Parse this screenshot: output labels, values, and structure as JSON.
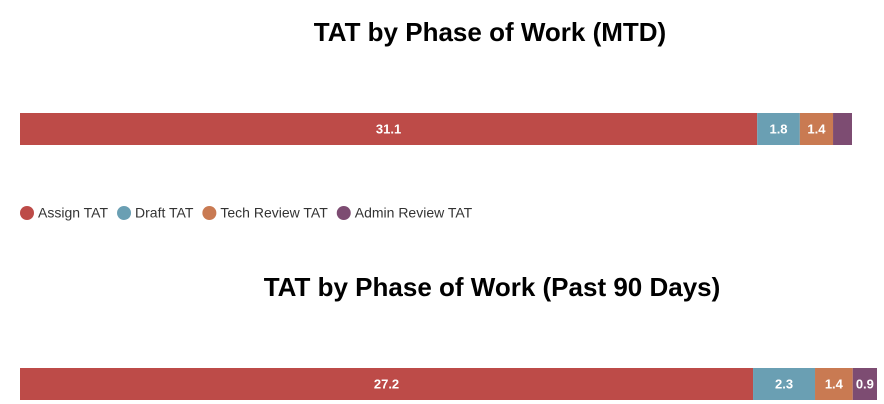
{
  "chart_data": [
    {
      "type": "stacked-bar",
      "title": "TAT by Phase of Work (MTD)",
      "series": [
        {
          "name": "Assign TAT",
          "color": "#bd4b48",
          "values": [
            31.1
          ]
        },
        {
          "name": "Draft TAT",
          "color": "#6a9fb3",
          "values": [
            1.8
          ]
        },
        {
          "name": "Tech Review TAT",
          "color": "#c97a52",
          "values": [
            1.4
          ]
        },
        {
          "name": "Admin Review TAT",
          "color": "#7d4c72",
          "values": [
            0.8
          ]
        }
      ]
    },
    {
      "type": "stacked-bar",
      "title": "TAT by Phase of Work (Past 90 Days)",
      "series": [
        {
          "name": "Assign TAT",
          "color": "#bd4b48",
          "values": [
            27.2
          ]
        },
        {
          "name": "Draft TAT",
          "color": "#6a9fb3",
          "values": [
            2.3
          ]
        },
        {
          "name": "Tech Review TAT",
          "color": "#c97a52",
          "values": [
            1.4
          ]
        },
        {
          "name": "Admin Review TAT",
          "color": "#7d4c72",
          "values": [
            0.9
          ]
        }
      ]
    }
  ]
}
